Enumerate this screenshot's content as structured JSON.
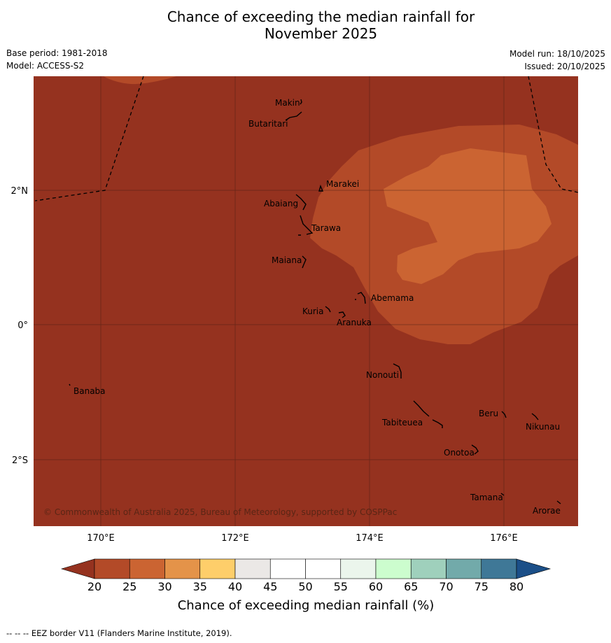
{
  "header": {
    "title_line1": "Chance of exceeding the median rainfall for",
    "title_line2": "November 2025",
    "base_period": "Base period: 1981-2018",
    "model": "Model: ACCESS-S2",
    "model_run": "Model run: 18/10/2025",
    "issued": "Issued: 20/10/2025"
  },
  "map": {
    "lat_labels": [
      "2°N",
      "0°",
      "2°S"
    ],
    "lon_labels": [
      "170°E",
      "172°E",
      "174°E",
      "176°E"
    ],
    "places": [
      "Makin",
      "Butaritari",
      "Marakei",
      "Abaiang",
      "Tarawa",
      "Maiana",
      "Abemama",
      "Kuria",
      "Aranuka",
      "Nonouti",
      "Banaba",
      "Beru",
      "Nikunau",
      "Tabiteuea",
      "Onotoa",
      "Tamana",
      "Arorae"
    ],
    "copyright": "© Commonwealth of Australia 2025, Bureau of Meteorology, supported by COSPPac",
    "colors": {
      "lt20": "#95321f",
      "c20_25": "#b34a28",
      "c25_30": "#cb6432",
      "c30_35": "#e49349",
      "ocean_note": "dominant class below 20%"
    }
  },
  "legend": {
    "title": "Chance of exceeding median rainfall (%)",
    "ticks": [
      "20",
      "25",
      "30",
      "35",
      "40",
      "45",
      "50",
      "55",
      "60",
      "65",
      "70",
      "75",
      "80"
    ],
    "colors": [
      "#b34a28",
      "#cb6432",
      "#e49349",
      "#fece6a",
      "#ebe8e6",
      "#ffffff",
      "#ffffff",
      "#ebf5ec",
      "#ccfdce",
      "#9fd0bc",
      "#72aaaa",
      "#3f7897"
    ],
    "under_color": "#95321f",
    "over_color": "#1b4f88"
  },
  "footer": {
    "note": "--  --  -- EEZ border V11 (Flanders Marine Institute, 2019)."
  }
}
